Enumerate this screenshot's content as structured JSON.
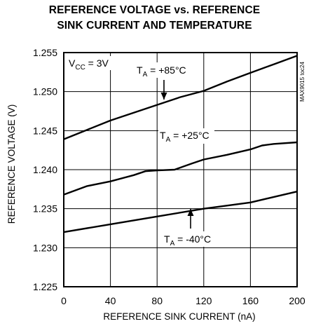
{
  "chart_data": {
    "type": "line",
    "title_line1": "REFERENCE VOLTAGE vs. REFERENCE",
    "title_line2": "SINK CURRENT AND TEMPERATURE",
    "xlabel": "REFERENCE SINK CURRENT (nA)",
    "ylabel": "REFERENCE VOLTAGE (V)",
    "xlim": [
      0,
      200
    ],
    "ylim": [
      1.225,
      1.255
    ],
    "x_ticks": [
      0,
      40,
      80,
      120,
      160,
      200
    ],
    "y_ticks": [
      "1.225",
      "1.230",
      "1.235",
      "1.240",
      "1.245",
      "1.250",
      "1.255"
    ],
    "grid": true,
    "side_label": "MAX9015 toc24",
    "vcc_label": {
      "main": "V",
      "sub": "CC",
      "rest": " = 3V"
    },
    "series": [
      {
        "name": "TA = +85°C",
        "label": {
          "main": "T",
          "sub": "A",
          "rest": " = +85°C"
        },
        "x": [
          0,
          20,
          40,
          60,
          80,
          100,
          120,
          140,
          160,
          180,
          200
        ],
        "y": [
          1.2439,
          1.2451,
          1.2463,
          1.2473,
          1.2483,
          1.2493,
          1.2501,
          1.2513,
          1.2524,
          1.2535,
          1.2546
        ]
      },
      {
        "name": "TA = +25°C",
        "label": {
          "main": "T",
          "sub": "A",
          "rest": " = +25°C"
        },
        "x": [
          0,
          20,
          40,
          60,
          70,
          80,
          95,
          110,
          120,
          140,
          160,
          170,
          180,
          200
        ],
        "y": [
          1.2368,
          1.2379,
          1.2385,
          1.2393,
          1.2398,
          1.2399,
          1.24,
          1.2408,
          1.2413,
          1.2419,
          1.2426,
          1.2431,
          1.2433,
          1.2435
        ]
      },
      {
        "name": "TA = -40°C",
        "label": {
          "main": "T",
          "sub": "A",
          "rest": " = -40°C"
        },
        "x": [
          0,
          40,
          80,
          120,
          160,
          200
        ],
        "y": [
          1.232,
          1.233,
          1.234,
          1.235,
          1.2358,
          1.2372
        ]
      }
    ]
  }
}
